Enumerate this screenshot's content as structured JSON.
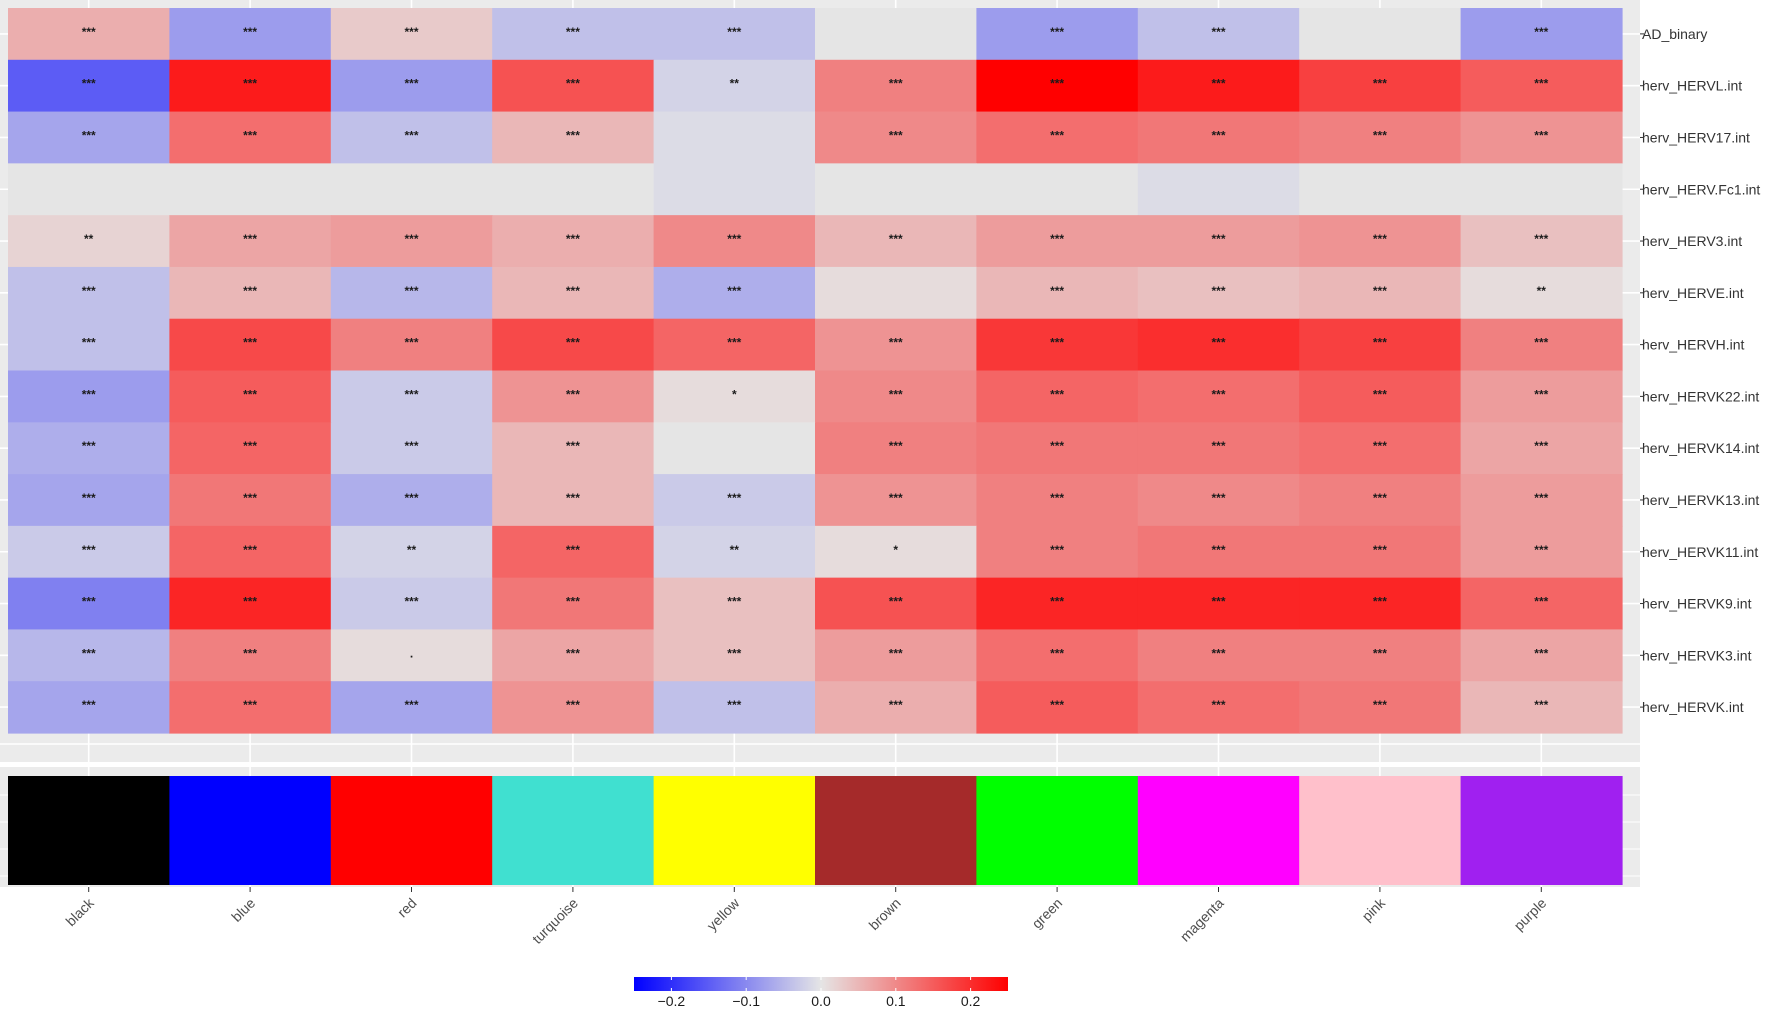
{
  "chart_data": {
    "type": "heatmap",
    "title": "",
    "xlabel": "",
    "ylabel": "",
    "columns": [
      "black",
      "blue",
      "red",
      "turquoise",
      "yellow",
      "brown",
      "green",
      "magenta",
      "pink",
      "purple"
    ],
    "rows": [
      "AD_binary",
      "herv_HERVL.int",
      "herv_HERV17.int",
      "herv_HERV.Fc1.int",
      "herv_HERV3.int",
      "herv_HERVE.int",
      "herv_HERVH.int",
      "herv_HERVK22.int",
      "herv_HERVK14.int",
      "herv_HERVK13.int",
      "herv_HERVK11.int",
      "herv_HERVK9.int",
      "herv_HERVK3.int",
      "herv_HERVK.int"
    ],
    "values": [
      [
        0.06,
        -0.08,
        0.03,
        -0.04,
        -0.04,
        0.0,
        -0.08,
        -0.04,
        0.0,
        -0.08
      ],
      [
        -0.15,
        0.22,
        -0.08,
        0.16,
        -0.02,
        0.11,
        0.25,
        0.22,
        0.18,
        0.15
      ],
      [
        -0.07,
        0.13,
        -0.04,
        0.05,
        -0.01,
        0.1,
        0.13,
        0.12,
        0.11,
        0.09
      ],
      [
        0.0,
        0.0,
        0.0,
        0.0,
        -0.01,
        0.0,
        0.0,
        -0.01,
        0.0,
        0.0
      ],
      [
        0.02,
        0.07,
        0.08,
        0.06,
        0.1,
        0.05,
        0.08,
        0.08,
        0.09,
        0.04
      ],
      [
        -0.04,
        0.05,
        -0.05,
        0.05,
        -0.06,
        0.01,
        0.05,
        0.04,
        0.05,
        0.01
      ],
      [
        -0.04,
        0.17,
        0.11,
        0.17,
        0.14,
        0.09,
        0.19,
        0.2,
        0.18,
        0.11
      ],
      [
        -0.08,
        0.15,
        -0.03,
        0.09,
        0.01,
        0.1,
        0.14,
        0.13,
        0.15,
        0.08
      ],
      [
        -0.06,
        0.14,
        -0.03,
        0.05,
        0.0,
        0.11,
        0.12,
        0.12,
        0.13,
        0.07
      ],
      [
        -0.07,
        0.12,
        -0.06,
        0.05,
        -0.03,
        0.09,
        0.11,
        0.1,
        0.11,
        0.08
      ],
      [
        -0.03,
        0.14,
        -0.02,
        0.14,
        -0.02,
        0.01,
        0.11,
        0.12,
        0.12,
        0.08
      ],
      [
        -0.11,
        0.21,
        -0.03,
        0.12,
        0.04,
        0.16,
        0.21,
        0.21,
        0.21,
        0.14
      ],
      [
        -0.05,
        0.11,
        0.01,
        0.07,
        0.04,
        0.08,
        0.13,
        0.11,
        0.11,
        0.07
      ],
      [
        -0.07,
        0.13,
        -0.07,
        0.09,
        -0.04,
        0.06,
        0.15,
        0.13,
        0.12,
        0.05
      ]
    ],
    "stars": [
      [
        "***",
        "***",
        "***",
        "***",
        "***",
        "",
        "***",
        "***",
        "",
        "***"
      ],
      [
        "***",
        "***",
        "***",
        "***",
        "**",
        "***",
        "***",
        "***",
        "***",
        "***"
      ],
      [
        "***",
        "***",
        "***",
        "***",
        "",
        "***",
        "***",
        "***",
        "***",
        "***"
      ],
      [
        "",
        "",
        "",
        "",
        "",
        "",
        "",
        "",
        "",
        ""
      ],
      [
        "**",
        "***",
        "***",
        "***",
        "***",
        "***",
        "***",
        "***",
        "***",
        "***"
      ],
      [
        "***",
        "***",
        "***",
        "***",
        "***",
        "",
        "***",
        "***",
        "***",
        "**"
      ],
      [
        "***",
        "***",
        "***",
        "***",
        "***",
        "***",
        "***",
        "***",
        "***",
        "***"
      ],
      [
        "***",
        "***",
        "***",
        "***",
        "*",
        "***",
        "***",
        "***",
        "***",
        "***"
      ],
      [
        "***",
        "***",
        "***",
        "***",
        "",
        "***",
        "***",
        "***",
        "***",
        "***"
      ],
      [
        "***",
        "***",
        "***",
        "***",
        "***",
        "***",
        "***",
        "***",
        "***",
        "***"
      ],
      [
        "***",
        "***",
        "**",
        "***",
        "**",
        "*",
        "***",
        "***",
        "***",
        "***"
      ],
      [
        "***",
        "***",
        "***",
        "***",
        "***",
        "***",
        "***",
        "***",
        "***",
        "***"
      ],
      [
        "***",
        "***",
        ".",
        "***",
        "***",
        "***",
        "***",
        "***",
        "***",
        "***"
      ],
      [
        "***",
        "***",
        "***",
        "***",
        "***",
        "***",
        "***",
        "***",
        "***",
        "***"
      ]
    ],
    "module_colors": [
      "#000000",
      "#0000ff",
      "#ff0000",
      "#40e0d0",
      "#ffff00",
      "#a52a2a",
      "#00ff00",
      "#ff00ff",
      "#ffc0cb",
      "#a020f0"
    ],
    "legend": {
      "position": "bottom",
      "low": "#0000ff",
      "mid": "#e5e5e5",
      "high": "#ff0000",
      "range": [
        -0.25,
        0.25
      ],
      "ticks": [
        "-0.2",
        "-0.1",
        "0.0",
        "0.1",
        "0.2"
      ],
      "tick_values": [
        -0.2,
        -0.1,
        0.0,
        0.1,
        0.2
      ]
    },
    "panel_background": "#ebebeb",
    "grid": true
  }
}
